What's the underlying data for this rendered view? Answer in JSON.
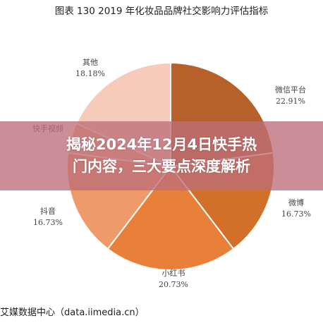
{
  "chart_data": {
    "type": "pie",
    "title": "图表 130 2019 年化妆品品牌社交影响力评估指标",
    "slices": [
      {
        "label": "微信平台",
        "value": 22.91,
        "value_label": "22.91%",
        "color": "#b8602a"
      },
      {
        "label": "微博",
        "value": 16.73,
        "value_label": "16.73%",
        "color": "#d2702a"
      },
      {
        "label": "小红书",
        "value": 20.73,
        "value_label": "20.73%",
        "color": "#e8803a"
      },
      {
        "label": "抖音",
        "value": 16.73,
        "value_label": "16.73%",
        "color": "#ee9a6a"
      },
      {
        "label": "快手视频",
        "value": 4.72,
        "value_label": "",
        "color": "#f2b08e"
      },
      {
        "label": "其他",
        "value": 18.18,
        "value_label": "18.18%",
        "color": "#f6cbbb"
      }
    ]
  },
  "overlay": {
    "headline_line1": "揭秘2024年12月4日快手热",
    "headline_line2": "门内容，三大要点深度解析"
  },
  "source": "艾媒数据中心（data.iimedia.cn）"
}
